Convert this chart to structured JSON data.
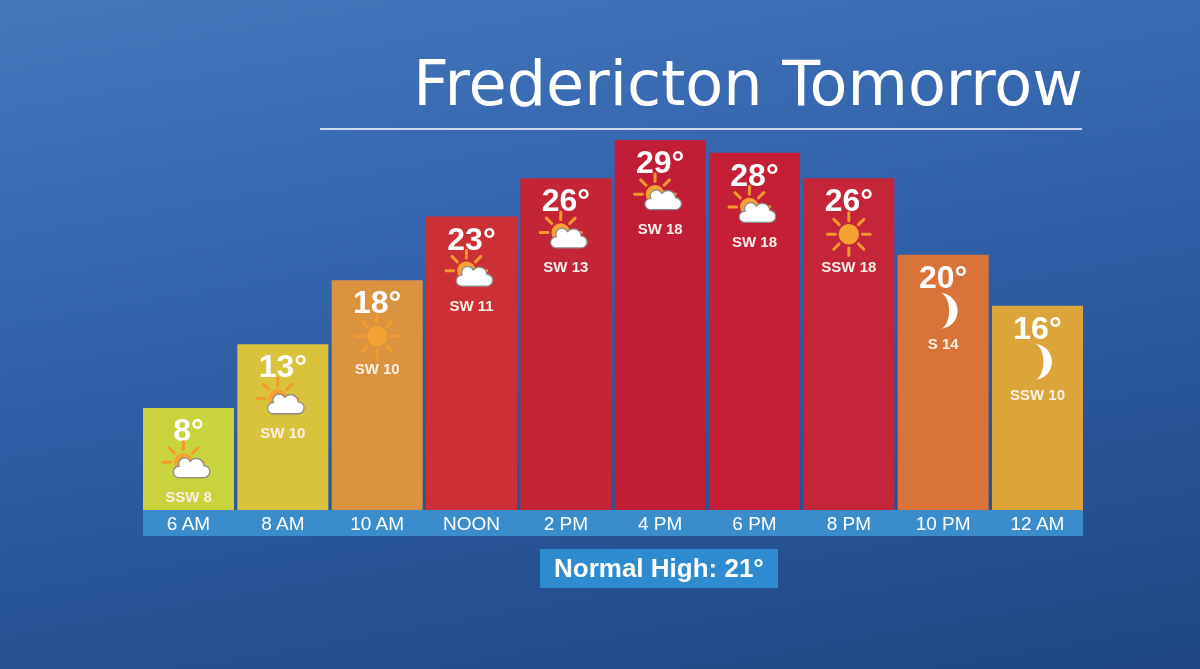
{
  "chart_data": {
    "type": "bar",
    "title": "Fredericton Tomorrow",
    "categories": [
      "6 AM",
      "8 AM",
      "10 AM",
      "NOON",
      "2 PM",
      "4 PM",
      "6 PM",
      "8 PM",
      "10 PM",
      "12 AM"
    ],
    "values": [
      8,
      13,
      18,
      23,
      26,
      29,
      28,
      26,
      20,
      16
    ],
    "value_labels": [
      "8°",
      "13°",
      "18°",
      "23°",
      "26°",
      "29°",
      "28°",
      "26°",
      "20°",
      "16°"
    ],
    "colors": [
      "#c9d33c",
      "#d9c23c",
      "#dc9340",
      "#cc3036",
      "#c32537",
      "#c21d36",
      "#c41f36",
      "#c42538",
      "#d9733a",
      "#dba53a"
    ],
    "tick_labels": "x",
    "annotations": [
      "SSW 8",
      "SW 10",
      "SW 10",
      "SW 11",
      "SW 13",
      "SW 18",
      "SW 18",
      "SSW 18",
      "S 14",
      "SSW 10",
      "Normal High: 21°"
    ]
  }
}
